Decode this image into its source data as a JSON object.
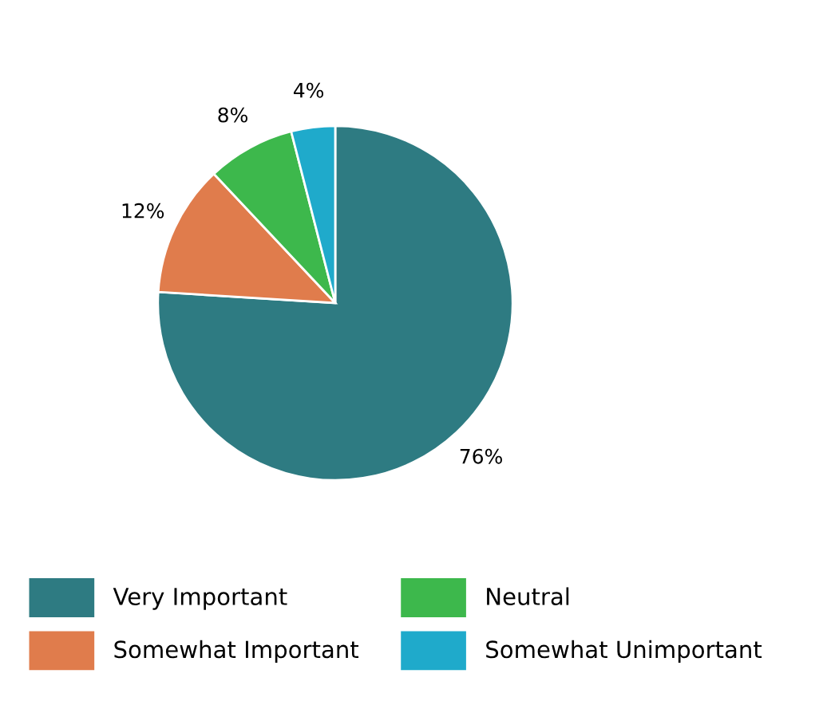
{
  "chart_data": {
    "type": "pie",
    "categories": [
      "Very Important",
      "Somewhat Important",
      "Neutral",
      "Somewhat Unimportant"
    ],
    "values": [
      76,
      12,
      8,
      4
    ],
    "colors": [
      "#2e7b82",
      "#e07c4c",
      "#3db84c",
      "#1faacb"
    ],
    "value_labels": [
      "76%",
      "12%",
      "8%",
      "4%"
    ],
    "legend": "bottom"
  }
}
